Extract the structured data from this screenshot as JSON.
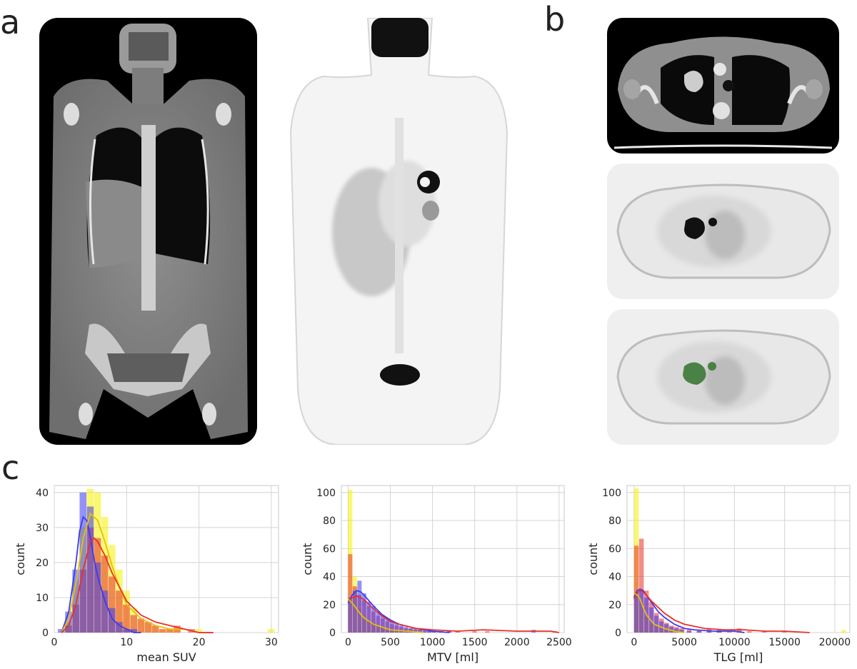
{
  "panels": {
    "a": "a",
    "b": "b",
    "c": "c"
  },
  "colors": {
    "blue": "#3b3bf0",
    "red": "#e8302c",
    "yellow": "#f5f000",
    "orange": "#e6a21a",
    "lesion_overlay": "#3e7a3a",
    "grid": "#d4d4d4"
  },
  "chart_data": [
    {
      "type": "bar",
      "subtype": "histogram-with-kde",
      "xlabel": "mean SUV",
      "ylabel": "count",
      "xlim": [
        0,
        31
      ],
      "ylim": [
        0,
        42
      ],
      "xticks": [
        "0",
        "10",
        "20",
        "30"
      ],
      "yticks": [
        "0",
        "10",
        "20",
        "30",
        "40"
      ],
      "grid": true,
      "bin_width": 1,
      "x": [
        1,
        2,
        3,
        4,
        5,
        6,
        7,
        8,
        9,
        10,
        11,
        12,
        13,
        14,
        15,
        16,
        17,
        18,
        19,
        20,
        21,
        22,
        23,
        24,
        25,
        26,
        27,
        28,
        29,
        30
      ],
      "series": [
        {
          "color": "blue",
          "values": [
            1,
            6,
            18,
            40,
            36,
            20,
            12,
            7,
            3,
            1,
            1,
            0,
            0,
            0,
            0,
            0,
            0,
            0,
            0,
            0,
            0,
            0,
            0,
            0,
            0,
            0,
            0,
            0,
            0,
            0
          ]
        },
        {
          "color": "red",
          "values": [
            0,
            2,
            8,
            18,
            30,
            27,
            22,
            16,
            12,
            8,
            5,
            4,
            3,
            2,
            1,
            1,
            2,
            0,
            1,
            0,
            0,
            0,
            0,
            0,
            0,
            0,
            0,
            0,
            0,
            0
          ]
        },
        {
          "color": "yellow",
          "values": [
            0,
            3,
            15,
            30,
            41,
            40,
            33,
            25,
            18,
            12,
            7,
            4,
            3,
            2,
            1,
            1,
            1,
            0,
            0,
            1,
            0,
            0,
            0,
            0,
            0,
            0,
            0,
            0,
            0,
            1
          ]
        }
      ],
      "kde": [
        {
          "color": "blue",
          "x": [
            1,
            2,
            3,
            3.5,
            4,
            4.5,
            5,
            5.5,
            6,
            7,
            8,
            9,
            10,
            11,
            12
          ],
          "y": [
            0,
            6,
            20,
            29,
            33,
            32,
            27,
            21,
            16,
            9,
            4,
            2,
            1,
            0,
            0
          ]
        },
        {
          "color": "yellow",
          "x": [
            1,
            2,
            3,
            4,
            5,
            6,
            7,
            8,
            9,
            10,
            12,
            14,
            16,
            18,
            20,
            22
          ],
          "y": [
            0,
            4,
            14,
            27,
            34,
            32,
            26,
            19,
            13,
            8,
            4,
            2,
            1,
            1,
            0,
            0
          ]
        },
        {
          "color": "red",
          "x": [
            1,
            2,
            3,
            4,
            5,
            5.5,
            6,
            7,
            8,
            9,
            10,
            12,
            14,
            16,
            18,
            20,
            22
          ],
          "y": [
            0,
            2,
            8,
            18,
            26,
            27,
            26,
            22,
            17,
            13,
            9,
            5,
            3,
            2,
            1,
            0,
            0
          ]
        }
      ]
    },
    {
      "type": "bar",
      "subtype": "histogram-with-kde",
      "xlabel": "MTV [ml]",
      "ylabel": "count",
      "xlim": [
        -80,
        2560
      ],
      "ylim": [
        0,
        105
      ],
      "xticks": [
        "0",
        "500",
        "1000",
        "1500",
        "2000",
        "2500"
      ],
      "yticks": [
        "0",
        "20",
        "40",
        "60",
        "80",
        "100"
      ],
      "grid": true,
      "bin_width": 55,
      "x": [
        27,
        82,
        137,
        192,
        247,
        302,
        357,
        412,
        467,
        522,
        577,
        632,
        687,
        742,
        797,
        852,
        907,
        962,
        1017,
        1100,
        1200,
        1300,
        1500,
        1650,
        2200,
        2450
      ],
      "series": [
        {
          "color": "blue",
          "values": [
            25,
            30,
            37,
            28,
            22,
            19,
            15,
            12,
            10,
            8,
            7,
            5,
            4,
            3,
            3,
            2,
            2,
            1,
            1,
            1,
            1,
            0,
            0,
            0,
            2,
            0
          ]
        },
        {
          "color": "red",
          "values": [
            56,
            33,
            27,
            23,
            19,
            15,
            12,
            10,
            8,
            6,
            5,
            4,
            3,
            3,
            2,
            2,
            1,
            1,
            1,
            1,
            1,
            1,
            1,
            1,
            0,
            1
          ]
        },
        {
          "color": "yellow",
          "values": [
            102,
            40,
            17,
            12,
            9,
            7,
            5,
            4,
            3,
            2,
            2,
            1,
            1,
            1,
            0,
            0,
            0,
            0,
            0,
            0,
            0,
            0,
            0,
            0,
            0,
            0
          ]
        }
      ],
      "kde": [
        {
          "color": "blue",
          "x": [
            0,
            50,
            100,
            150,
            200,
            300,
            400,
            500,
            600,
            800,
            1000,
            1200
          ],
          "y": [
            21,
            27,
            30,
            29,
            26,
            19,
            13,
            9,
            6,
            3,
            1,
            0
          ]
        },
        {
          "color": "red",
          "x": [
            0,
            50,
            100,
            150,
            200,
            300,
            400,
            500,
            600,
            800,
            1000,
            1300,
            1600,
            2000,
            2400,
            2500
          ],
          "y": [
            23,
            25,
            26,
            25,
            23,
            17,
            12,
            8,
            6,
            3,
            2,
            1,
            2,
            1,
            1,
            0
          ]
        },
        {
          "color": "yellow",
          "x": [
            0,
            50,
            100,
            150,
            200,
            300,
            400,
            500,
            700,
            900
          ],
          "y": [
            24,
            21,
            17,
            13,
            10,
            6,
            4,
            2,
            1,
            0
          ]
        }
      ]
    },
    {
      "type": "bar",
      "subtype": "histogram-with-kde",
      "xlabel": "TLG [ml]",
      "ylabel": "count",
      "xlim": [
        -700,
        21500
      ],
      "ylim": [
        0,
        105
      ],
      "xticks": [
        "0",
        "5000",
        "10000",
        "15000",
        "20000"
      ],
      "yticks": [
        "0",
        "20",
        "40",
        "60",
        "80",
        "100"
      ],
      "grid": true,
      "bin_width": 500,
      "x": [
        250,
        750,
        1250,
        1750,
        2250,
        2750,
        3250,
        3750,
        4250,
        4750,
        5500,
        6500,
        7500,
        8500,
        9500,
        10500,
        11500,
        13000,
        15000,
        17500,
        20900
      ],
      "series": [
        {
          "color": "blue",
          "values": [
            28,
            30,
            25,
            18,
            12,
            8,
            6,
            4,
            3,
            2,
            1,
            1,
            1,
            1,
            0,
            0,
            0,
            0,
            0,
            0,
            0
          ]
        },
        {
          "color": "red",
          "values": [
            62,
            67,
            30,
            22,
            14,
            10,
            7,
            5,
            4,
            3,
            2,
            2,
            3,
            2,
            1,
            3,
            1,
            1,
            1,
            0,
            0
          ]
        },
        {
          "color": "yellow",
          "values": [
            103,
            22,
            12,
            6,
            4,
            3,
            2,
            1,
            1,
            1,
            0,
            0,
            0,
            0,
            0,
            0,
            0,
            0,
            0,
            0,
            2
          ]
        }
      ],
      "kde": [
        {
          "color": "blue",
          "x": [
            0,
            300,
            600,
            900,
            1200,
            1800,
            2400,
            3000,
            4000,
            5000,
            6000,
            8000,
            10000,
            11000
          ],
          "y": [
            25,
            30,
            31,
            30,
            27,
            21,
            15,
            11,
            6,
            3,
            2,
            1,
            1,
            0
          ]
        },
        {
          "color": "red",
          "x": [
            0,
            300,
            600,
            900,
            1200,
            1800,
            2400,
            3000,
            4000,
            5000,
            7000,
            9000,
            11000,
            13000,
            15000,
            17500
          ],
          "y": [
            24,
            28,
            30,
            29,
            27,
            22,
            18,
            14,
            9,
            6,
            3,
            2,
            2,
            1,
            1,
            0
          ]
        },
        {
          "color": "yellow",
          "x": [
            0,
            300,
            600,
            900,
            1300,
            2000,
            3000,
            4000,
            5000
          ],
          "y": [
            28,
            27,
            24,
            18,
            12,
            6,
            3,
            1,
            0
          ]
        }
      ]
    }
  ]
}
